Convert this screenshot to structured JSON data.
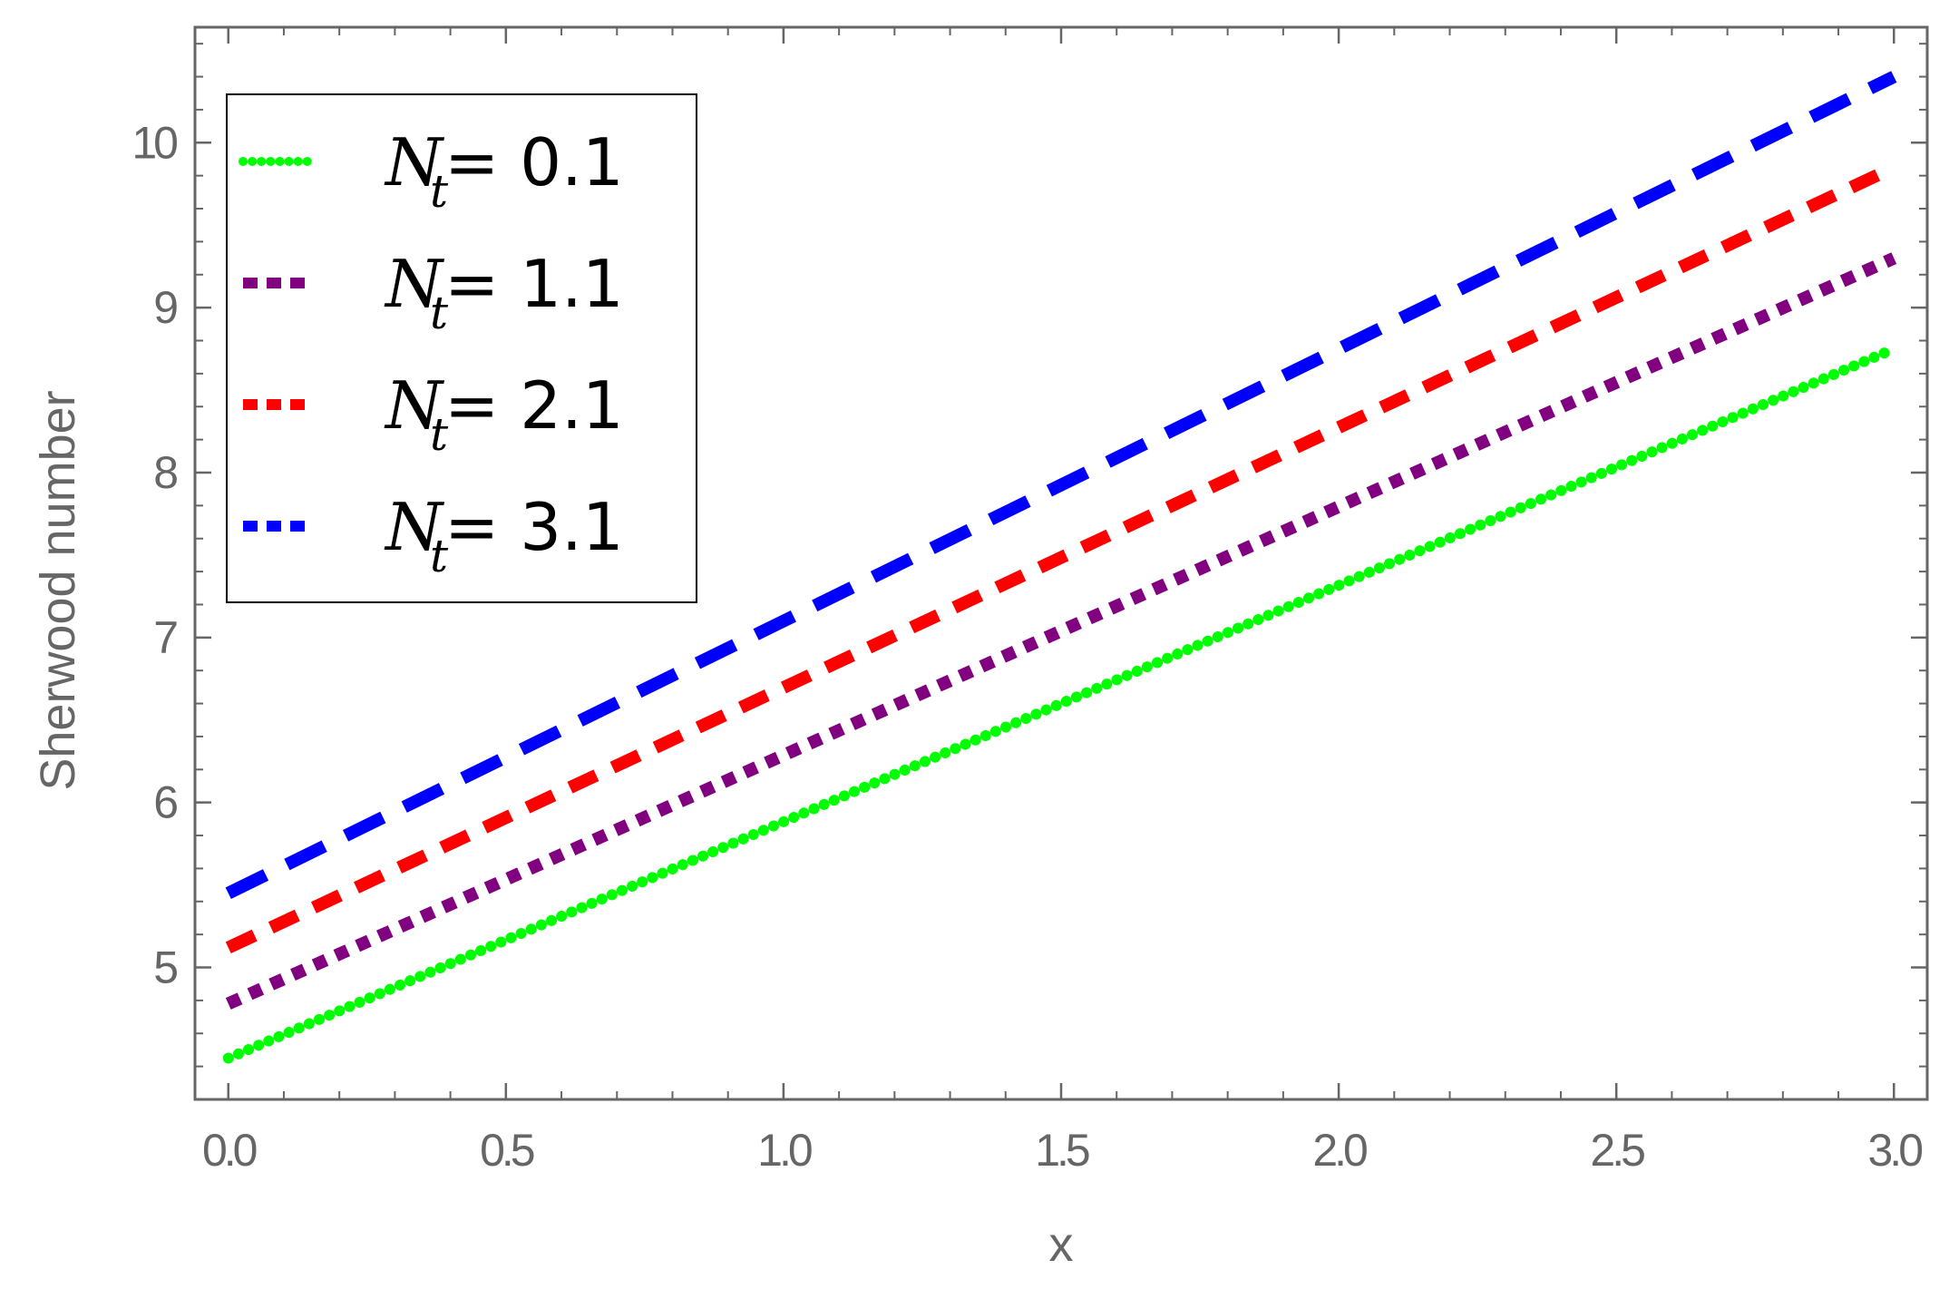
{
  "chart_data": {
    "type": "line",
    "xlabel": "x",
    "ylabel": "Sherwood number",
    "xlim": [
      -0.06,
      3.06
    ],
    "ylim": [
      4.2,
      10.7
    ],
    "x_ticks": [
      {
        "value": 0.0,
        "label": "0.0"
      },
      {
        "value": 0.5,
        "label": "0.5"
      },
      {
        "value": 1.0,
        "label": "1.0"
      },
      {
        "value": 1.5,
        "label": "1.5"
      },
      {
        "value": 2.0,
        "label": "2.0"
      },
      {
        "value": 2.5,
        "label": "2.5"
      },
      {
        "value": 3.0,
        "label": "3.0"
      }
    ],
    "y_ticks": [
      {
        "value": 5,
        "label": "5"
      },
      {
        "value": 6,
        "label": "6"
      },
      {
        "value": 7,
        "label": "7"
      },
      {
        "value": 8,
        "label": "8"
      },
      {
        "value": 9,
        "label": "9"
      },
      {
        "value": 10,
        "label": "10"
      }
    ],
    "x_minor_step": 0.1,
    "y_minor_step": 0.2,
    "grid": false,
    "legend_position": "top-left",
    "series": [
      {
        "legend_symbol": "N",
        "legend_subscript": "t",
        "legend_value": " = 0.1",
        "color": "#00ff00",
        "dash": "dotted",
        "x": [
          0.0,
          3.0
        ],
        "y": [
          4.45,
          8.75
        ]
      },
      {
        "legend_symbol": "N",
        "legend_subscript": "t",
        "legend_value": " = 1.1",
        "color": "#800080",
        "dash": "dotted-wide",
        "x": [
          0.0,
          3.0
        ],
        "y": [
          4.78,
          9.3
        ]
      },
      {
        "legend_symbol": "N",
        "legend_subscript": "t",
        "legend_value": " = 2.1",
        "color": "#ff0000",
        "dash": "dashed",
        "x": [
          0.0,
          3.0
        ],
        "y": [
          5.12,
          9.85
        ]
      },
      {
        "legend_symbol": "N",
        "legend_subscript": "t",
        "legend_value": " = 3.1",
        "color": "#0000ff",
        "dash": "long-dashed",
        "x": [
          0.0,
          3.0
        ],
        "y": [
          5.45,
          10.4
        ]
      }
    ]
  }
}
